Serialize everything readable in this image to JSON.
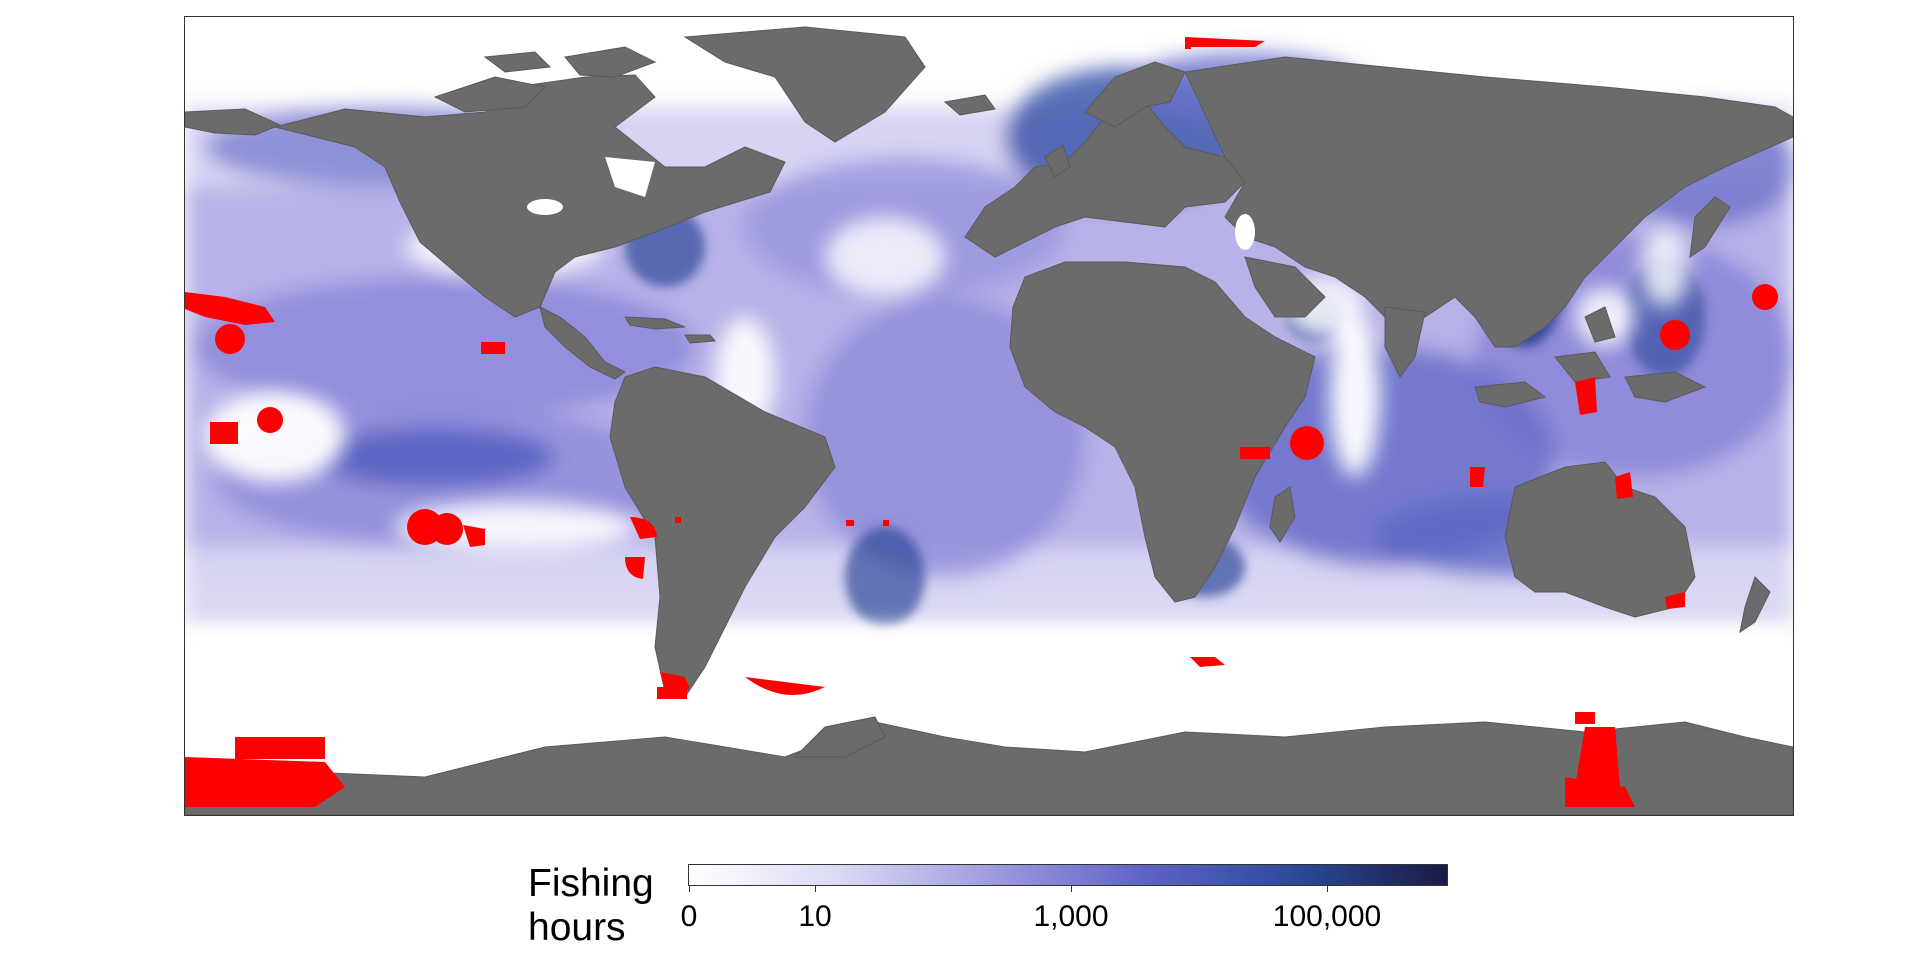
{
  "map": {
    "projection": "equirectangular world map",
    "land_color": "#6b6b6b",
    "ocean_no_effort_color": "#ffffff",
    "highlight_color": "#ff0000",
    "effort_colormap": [
      "#ffffff",
      "#d9d9f3",
      "#9f9be0",
      "#5f63c6",
      "#2c4a9a",
      "#1c1a45"
    ]
  },
  "legend": {
    "title_line1": "Fishing",
    "title_line2": "hours",
    "tick_labels": [
      "0",
      "10",
      "1,000",
      "100,000"
    ],
    "scale": "log"
  }
}
